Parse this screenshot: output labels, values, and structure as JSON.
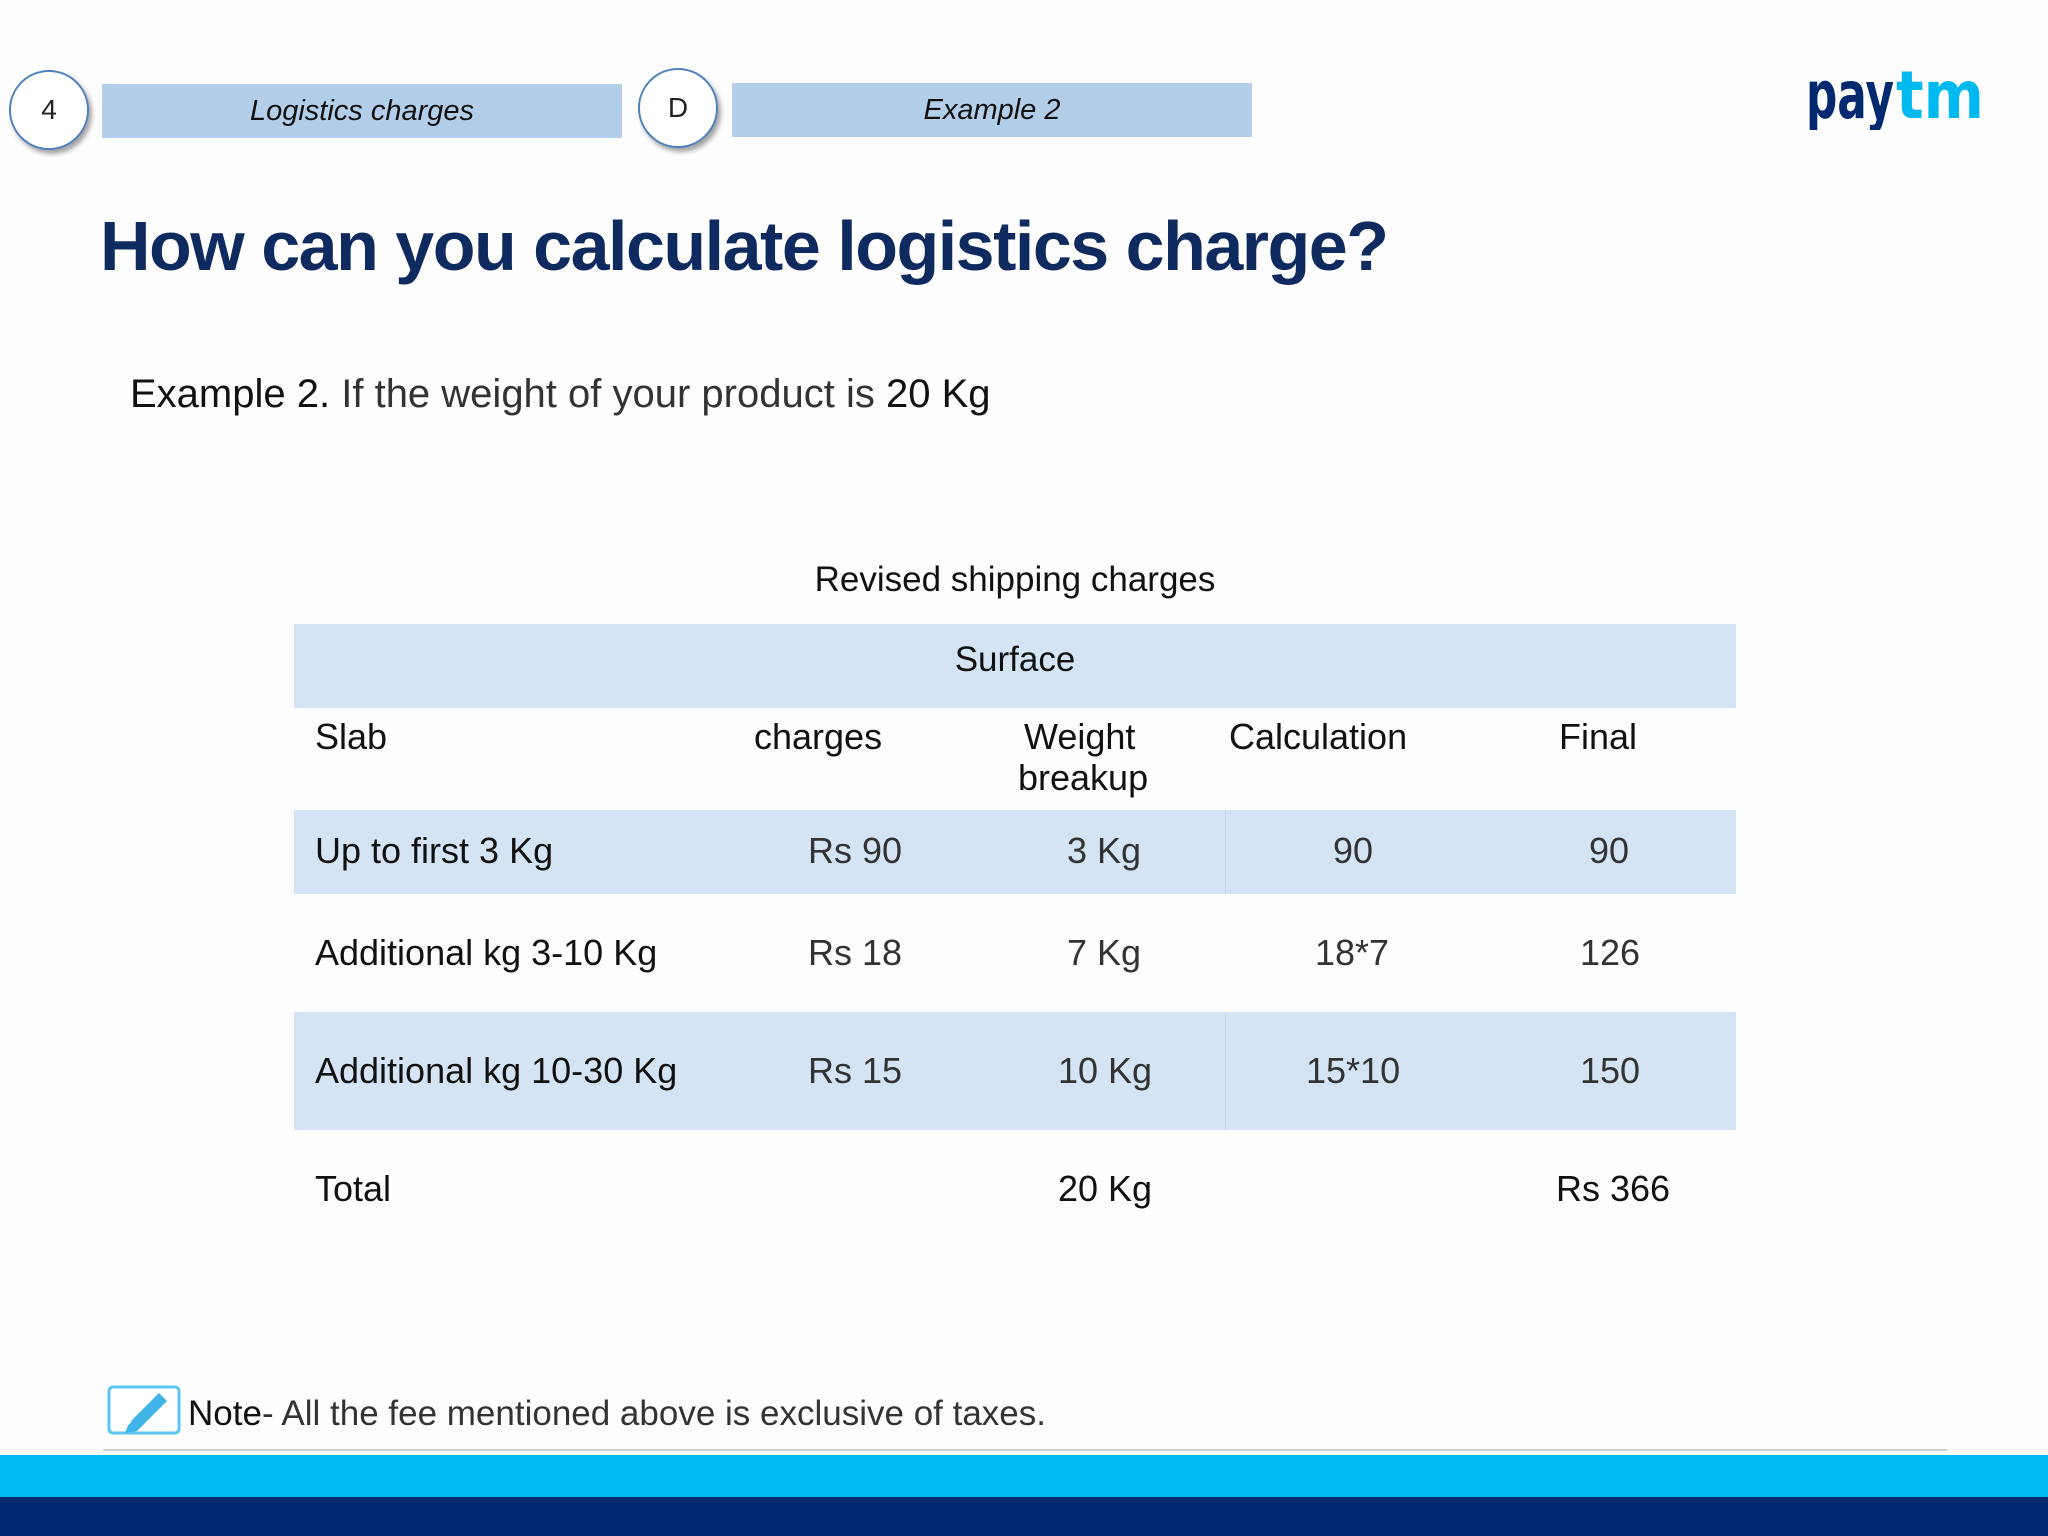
{
  "breadcrumb": {
    "step_number": "4",
    "step_label": "Logistics charges",
    "sub_letter": "D",
    "sub_label": "Example 2"
  },
  "logo": {
    "text": "paytm",
    "icon": "paytm-logo",
    "color_primary": "#002970",
    "color_accent": "#00b9f1"
  },
  "title": "How can you calculate logistics charge?",
  "example": {
    "prefix": "Example  2.",
    "text": "If the weight of your product is",
    "weight": "20 Kg"
  },
  "table": {
    "caption": "Revised shipping charges",
    "mode": "Surface",
    "headers": {
      "slab": "Slab",
      "charges": "charges",
      "weight_line1": "Weight",
      "weight_line2": "breakup",
      "calculation": "Calculation",
      "final": "Final"
    },
    "rows": [
      {
        "slab": "Up to  first 3 Kg",
        "charges": "Rs 90",
        "weight": "3 Kg",
        "calculation": "90",
        "final": "90"
      },
      {
        "slab": "Additional kg 3-10 Kg",
        "charges": "Rs 18",
        "weight": "7 Kg",
        "calculation": "18*7",
        "final": "126"
      },
      {
        "slab": "Additional kg 10-30 Kg",
        "charges": "Rs 15",
        "weight": "10 Kg",
        "calculation": "15*10",
        "final": "150"
      }
    ],
    "total": {
      "label": "Total",
      "weight": "20 Kg",
      "final": "Rs 366"
    },
    "band_color": "#d5e4f5"
  },
  "note": {
    "icon": "edit-pencil-icon",
    "label": "Note",
    "text": "- All the fee mentioned above is exclusive of  taxes."
  },
  "colors": {
    "title": "#0f2a5e",
    "crumb_bar": "#b3cee9",
    "footer_cyan": "#00b9f1",
    "footer_navy": "#002970"
  }
}
